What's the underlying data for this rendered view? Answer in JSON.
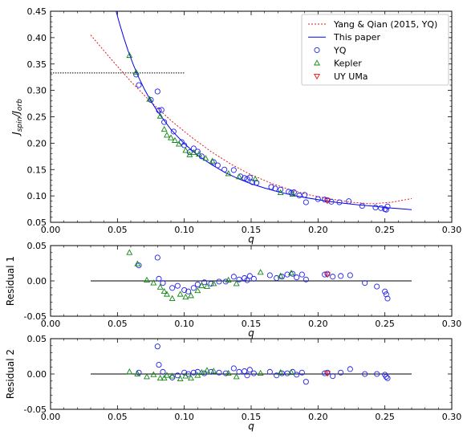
{
  "figure": {
    "colors": {
      "axis": "#000000",
      "yq_fit": "#e31a1c",
      "this_paper": "#0000ee",
      "yq_points": "#2222ee",
      "kepler": "#118811",
      "uyuma": "#ee1111"
    }
  },
  "chart_data": [
    {
      "id": "main",
      "type": "scatter",
      "xlabel": "q",
      "ylabel": "J_spin/J_orb",
      "xlim": [
        0.0,
        0.3
      ],
      "ylim": [
        0.05,
        0.45
      ],
      "x_ticks": [
        "0.00",
        "0.05",
        "0.10",
        "0.15",
        "0.20",
        "0.25",
        "0.30"
      ],
      "y_ticks": [
        "0.05",
        "0.10",
        "0.15",
        "0.20",
        "0.25",
        "0.30",
        "0.35",
        "0.40",
        "0.45"
      ],
      "legend_position": "top-right",
      "legend": [
        {
          "label": "Yang & Qian (2015, YQ)",
          "marker": "dotted-line"
        },
        {
          "label": "This paper",
          "marker": "line"
        },
        {
          "label": "YQ",
          "marker": "circle"
        },
        {
          "label": "Kepler",
          "marker": "triangle-up"
        },
        {
          "label": "UY UMa",
          "marker": "triangle-down"
        }
      ],
      "reference_line": {
        "y": 0.333,
        "x_range": [
          0.0,
          0.1
        ],
        "style": "dotted"
      },
      "curves": {
        "yang_qian": {
          "x": [
            0.03,
            0.045,
            0.06,
            0.075,
            0.09,
            0.105,
            0.12,
            0.135,
            0.15,
            0.165,
            0.18,
            0.195,
            0.21,
            0.225,
            0.24,
            0.255,
            0.27
          ],
          "y": [
            0.405,
            0.36,
            0.317,
            0.278,
            0.243,
            0.212,
            0.184,
            0.16,
            0.14,
            0.124,
            0.111,
            0.101,
            0.094,
            0.088,
            0.085,
            0.088,
            0.095
          ]
        },
        "this_paper": {
          "x": [
            0.049,
            0.052,
            0.055,
            0.058,
            0.062,
            0.066,
            0.07,
            0.075,
            0.08,
            0.09,
            0.1,
            0.11,
            0.12,
            0.13,
            0.14,
            0.15,
            0.16,
            0.17,
            0.18,
            0.19,
            0.2,
            0.21,
            0.22,
            0.23,
            0.24,
            0.25,
            0.26,
            0.27
          ],
          "y": [
            0.45,
            0.423,
            0.398,
            0.375,
            0.348,
            0.324,
            0.303,
            0.28,
            0.26,
            0.226,
            0.199,
            0.177,
            0.16,
            0.145,
            0.133,
            0.123,
            0.115,
            0.108,
            0.102,
            0.097,
            0.093,
            0.089,
            0.086,
            0.083,
            0.081,
            0.078,
            0.076,
            0.074
          ]
        }
      },
      "series": [
        {
          "name": "YQ",
          "points": [
            [
              0.064,
              0.33
            ],
            [
              0.066,
              0.31
            ],
            [
              0.075,
              0.282
            ],
            [
              0.08,
              0.298
            ],
            [
              0.081,
              0.262
            ],
            [
              0.083,
              0.263
            ],
            [
              0.085,
              0.24
            ],
            [
              0.092,
              0.222
            ],
            [
              0.098,
              0.202
            ],
            [
              0.1,
              0.196
            ],
            [
              0.104,
              0.183
            ],
            [
              0.107,
              0.19
            ],
            [
              0.11,
              0.184
            ],
            [
              0.113,
              0.175
            ],
            [
              0.122,
              0.164
            ],
            [
              0.125,
              0.158
            ],
            [
              0.13,
              0.15
            ],
            [
              0.137,
              0.149
            ],
            [
              0.142,
              0.137
            ],
            [
              0.145,
              0.134
            ],
            [
              0.147,
              0.132
            ],
            [
              0.149,
              0.135
            ],
            [
              0.151,
              0.126
            ],
            [
              0.154,
              0.125
            ],
            [
              0.165,
              0.117
            ],
            [
              0.168,
              0.114
            ],
            [
              0.172,
              0.112
            ],
            [
              0.178,
              0.108
            ],
            [
              0.18,
              0.106
            ],
            [
              0.182,
              0.107
            ],
            [
              0.186,
              0.101
            ],
            [
              0.19,
              0.102
            ],
            [
              0.191,
              0.088
            ],
            [
              0.2,
              0.094
            ],
            [
              0.205,
              0.093
            ],
            [
              0.207,
              0.092
            ],
            [
              0.21,
              0.089
            ],
            [
              0.216,
              0.088
            ],
            [
              0.223,
              0.09
            ],
            [
              0.233,
              0.081
            ],
            [
              0.243,
              0.078
            ],
            [
              0.247,
              0.077
            ],
            [
              0.25,
              0.075
            ],
            [
              0.251,
              0.074
            ],
            [
              0.252,
              0.08
            ]
          ]
        },
        {
          "name": "Kepler",
          "points": [
            [
              0.059,
              0.366
            ],
            [
              0.064,
              0.334
            ],
            [
              0.074,
              0.283
            ],
            [
              0.082,
              0.251
            ],
            [
              0.085,
              0.226
            ],
            [
              0.087,
              0.215
            ],
            [
              0.09,
              0.21
            ],
            [
              0.093,
              0.205
            ],
            [
              0.096,
              0.198
            ],
            [
              0.101,
              0.186
            ],
            [
              0.104,
              0.178
            ],
            [
              0.107,
              0.182
            ],
            [
              0.111,
              0.179
            ],
            [
              0.116,
              0.171
            ],
            [
              0.121,
              0.166
            ],
            [
              0.133,
              0.142
            ],
            [
              0.141,
              0.136
            ],
            [
              0.153,
              0.132
            ],
            [
              0.172,
              0.106
            ],
            [
              0.181,
              0.103
            ]
          ]
        },
        {
          "name": "UY UMa",
          "points": [
            [
              0.207,
              0.091
            ]
          ]
        }
      ]
    },
    {
      "id": "residual1",
      "type": "scatter",
      "xlabel": "q",
      "ylabel": "Residual 1",
      "xlim": [
        0.0,
        0.3
      ],
      "ylim": [
        -0.05,
        0.05
      ],
      "x_ticks": [
        "0.00",
        "0.05",
        "0.10",
        "0.15",
        "0.20",
        "0.25",
        "0.30"
      ],
      "y_ticks": [
        "-0.05",
        "0.00",
        "0.05"
      ],
      "zero_line": {
        "x_range": [
          0.03,
          0.27
        ]
      },
      "series": [
        {
          "name": "YQ",
          "points": [
            [
              0.066,
              0.022
            ],
            [
              0.08,
              0.033
            ],
            [
              0.081,
              0.003
            ],
            [
              0.084,
              -0.003
            ],
            [
              0.091,
              -0.01
            ],
            [
              0.095,
              -0.007
            ],
            [
              0.1,
              -0.013
            ],
            [
              0.103,
              -0.015
            ],
            [
              0.107,
              -0.01
            ],
            [
              0.11,
              -0.005
            ],
            [
              0.115,
              -0.002
            ],
            [
              0.12,
              -0.004
            ],
            [
              0.126,
              -0.001
            ],
            [
              0.131,
              -0.001
            ],
            [
              0.137,
              0.006
            ],
            [
              0.141,
              0.002
            ],
            [
              0.145,
              0.004
            ],
            [
              0.147,
              0.001
            ],
            [
              0.149,
              0.007
            ],
            [
              0.152,
              0.003
            ],
            [
              0.164,
              0.008
            ],
            [
              0.169,
              0.004
            ],
            [
              0.173,
              0.006
            ],
            [
              0.177,
              0.009
            ],
            [
              0.181,
              0.01
            ],
            [
              0.184,
              0.005
            ],
            [
              0.188,
              0.009
            ],
            [
              0.191,
              0.002
            ],
            [
              0.205,
              0.009
            ],
            [
              0.207,
              0.01
            ],
            [
              0.211,
              0.006
            ],
            [
              0.217,
              0.007
            ],
            [
              0.224,
              0.008
            ],
            [
              0.235,
              -0.003
            ],
            [
              0.244,
              -0.008
            ],
            [
              0.25,
              -0.015
            ],
            [
              0.251,
              -0.019
            ],
            [
              0.252,
              -0.025
            ]
          ]
        },
        {
          "name": "Kepler",
          "points": [
            [
              0.059,
              0.04
            ],
            [
              0.065,
              0.024
            ],
            [
              0.072,
              0.001
            ],
            [
              0.077,
              -0.003
            ],
            [
              0.082,
              -0.009
            ],
            [
              0.085,
              -0.015
            ],
            [
              0.087,
              -0.019
            ],
            [
              0.091,
              -0.025
            ],
            [
              0.097,
              -0.019
            ],
            [
              0.101,
              -0.023
            ],
            [
              0.105,
              -0.021
            ],
            [
              0.11,
              -0.014
            ],
            [
              0.113,
              -0.007
            ],
            [
              0.117,
              -0.008
            ],
            [
              0.122,
              -0.004
            ],
            [
              0.133,
              0.001
            ],
            [
              0.139,
              -0.004
            ],
            [
              0.157,
              0.012
            ],
            [
              0.172,
              0.007
            ],
            [
              0.18,
              0.011
            ]
          ]
        },
        {
          "name": "UY UMa",
          "points": [
            [
              0.207,
              0.009
            ]
          ]
        }
      ]
    },
    {
      "id": "residual2",
      "type": "scatter",
      "xlabel": "q",
      "ylabel": "Residual 2",
      "xlim": [
        0.0,
        0.3
      ],
      "ylim": [
        -0.05,
        0.05
      ],
      "x_ticks": [
        "0.00",
        "0.05",
        "0.10",
        "0.15",
        "0.20",
        "0.25",
        "0.30"
      ],
      "y_ticks": [
        "-0.05",
        "0.00",
        "0.05"
      ],
      "zero_line": {
        "x_range": [
          0.03,
          0.27
        ]
      },
      "series": [
        {
          "name": "YQ",
          "points": [
            [
              0.066,
              0.002
            ],
            [
              0.08,
              0.039
            ],
            [
              0.081,
              0.013
            ],
            [
              0.084,
              0.003
            ],
            [
              0.091,
              -0.005
            ],
            [
              0.095,
              -0.002
            ],
            [
              0.1,
              0.002
            ],
            [
              0.103,
              0.0
            ],
            [
              0.107,
              0.002
            ],
            [
              0.11,
              0.003
            ],
            [
              0.115,
              0.001
            ],
            [
              0.12,
              0.003
            ],
            [
              0.126,
              0.002
            ],
            [
              0.131,
              0.001
            ],
            [
              0.137,
              0.008
            ],
            [
              0.141,
              0.003
            ],
            [
              0.145,
              0.004
            ],
            [
              0.147,
              -0.002
            ],
            [
              0.149,
              0.006
            ],
            [
              0.152,
              0.001
            ],
            [
              0.164,
              0.003
            ],
            [
              0.169,
              -0.002
            ],
            [
              0.173,
              0.001
            ],
            [
              0.177,
              0.001
            ],
            [
              0.181,
              0.003
            ],
            [
              0.184,
              -0.001
            ],
            [
              0.188,
              0.002
            ],
            [
              0.191,
              -0.011
            ],
            [
              0.205,
              0.001
            ],
            [
              0.207,
              0.002
            ],
            [
              0.211,
              -0.003
            ],
            [
              0.217,
              0.002
            ],
            [
              0.224,
              0.007
            ],
            [
              0.235,
              0.0
            ],
            [
              0.244,
              0.0
            ],
            [
              0.25,
              -0.001
            ],
            [
              0.251,
              -0.004
            ],
            [
              0.252,
              -0.006
            ]
          ]
        },
        {
          "name": "Kepler",
          "points": [
            [
              0.059,
              0.003
            ],
            [
              0.065,
              0.0
            ],
            [
              0.072,
              -0.004
            ],
            [
              0.077,
              -0.001
            ],
            [
              0.082,
              -0.006
            ],
            [
              0.085,
              -0.006
            ],
            [
              0.087,
              -0.002
            ],
            [
              0.091,
              -0.003
            ],
            [
              0.097,
              -0.007
            ],
            [
              0.101,
              -0.003
            ],
            [
              0.105,
              -0.006
            ],
            [
              0.11,
              -0.002
            ],
            [
              0.113,
              0.002
            ],
            [
              0.117,
              0.005
            ],
            [
              0.122,
              0.004
            ],
            [
              0.133,
              0.001
            ],
            [
              0.139,
              -0.004
            ],
            [
              0.157,
              0.001
            ],
            [
              0.172,
              0.002
            ],
            [
              0.18,
              0.002
            ]
          ]
        },
        {
          "name": "UY UMa",
          "points": [
            [
              0.207,
              0.001
            ]
          ]
        }
      ]
    }
  ]
}
